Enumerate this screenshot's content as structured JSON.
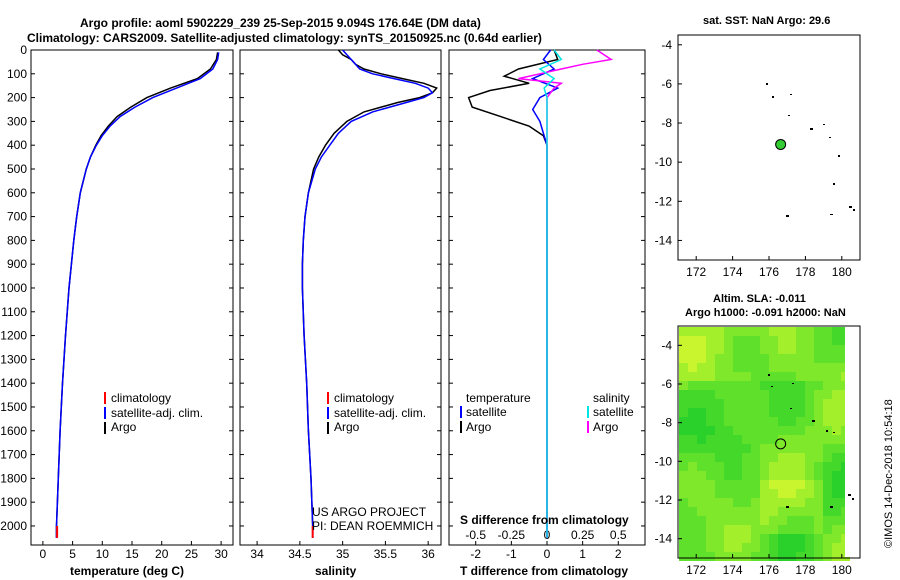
{
  "header": {
    "line1": "Argo profile: aoml 5902229_239 25-Sep-2015 9.094S 176.64E (DM data)",
    "line2": "Climatology: CARS2009. Satellite-adjusted climatology: synTS_20150925.nc (0.64d earlier)"
  },
  "colors": {
    "climatology": "#ff0000",
    "satellite": "#0000ff",
    "argo": "#000000",
    "argo_s": "#ff00ff",
    "satellite_s": "#00e5e5",
    "marker": "#33cc33"
  },
  "chart_data": [
    {
      "type": "line",
      "id": "temperature",
      "xlabel": "temperature (deg C)",
      "xlim": [
        -2,
        32
      ],
      "ylim": [
        0,
        2080
      ],
      "xticks": [
        "0",
        "5",
        "10",
        "15",
        "20",
        "25",
        "30"
      ],
      "yticks": [
        "0",
        "100",
        "200",
        "300",
        "400",
        "500",
        "600",
        "700",
        "800",
        "900",
        "1000",
        "1100",
        "1200",
        "1300",
        "1400",
        "1500",
        "1600",
        "1700",
        "1800",
        "1900",
        "2000"
      ],
      "legend": [
        "climatology",
        "satellite-adj. clim.",
        "Argo"
      ],
      "series": [
        {
          "name": "climatology",
          "depth": [
            2000,
            2050
          ],
          "values": [
            2.4,
            2.4
          ]
        },
        {
          "name": "satellite-adj. clim.",
          "depth": [
            10,
            40,
            80,
            120,
            160,
            200,
            240,
            280,
            320,
            360,
            400,
            450,
            500,
            600,
            700,
            800,
            900,
            1000,
            1200,
            1400,
            1600,
            1800,
            2000,
            2050
          ],
          "values": [
            29.6,
            29.4,
            28.6,
            26.5,
            22.5,
            18.5,
            15.5,
            13.0,
            11.3,
            10.0,
            9.0,
            8.0,
            7.3,
            6.3,
            5.7,
            5.2,
            4.8,
            4.4,
            3.8,
            3.3,
            2.9,
            2.6,
            2.3,
            2.3
          ]
        },
        {
          "name": "Argo",
          "depth": [
            10,
            40,
            80,
            120,
            160,
            200,
            240,
            280,
            320,
            360,
            400,
            450,
            500,
            600,
            700,
            800,
            900,
            1000,
            1200,
            1400,
            1600,
            1800,
            2000,
            2050
          ],
          "values": [
            29.4,
            29.2,
            28.2,
            26.0,
            21.5,
            17.5,
            14.8,
            12.5,
            11.0,
            9.8,
            8.9,
            8.0,
            7.3,
            6.3,
            5.7,
            5.2,
            4.8,
            4.4,
            3.8,
            3.3,
            2.9,
            2.6,
            2.3,
            2.3
          ]
        }
      ]
    },
    {
      "type": "line",
      "id": "salinity",
      "xlabel": "salinity",
      "xlim": [
        33.8,
        36.15
      ],
      "ylim": [
        0,
        2080
      ],
      "xticks": [
        "34",
        "34.5",
        "35",
        "35.5",
        "36"
      ],
      "legend": [
        "climatology",
        "satellite-adj. clim.",
        "Argo"
      ],
      "credit": [
        "US ARGO PROJECT",
        "PI: DEAN ROEMMICH"
      ],
      "series": [
        {
          "name": "climatology",
          "depth": [
            2000,
            2050
          ],
          "values": [
            34.65,
            34.65
          ]
        },
        {
          "name": "satellite-adj. clim.",
          "depth": [
            0,
            20,
            40,
            60,
            80,
            100,
            120,
            140,
            160,
            180,
            200,
            220,
            240,
            260,
            300,
            350,
            400,
            450,
            500,
            600,
            700,
            800,
            900,
            1000,
            1200,
            1400,
            1600,
            1800,
            2000,
            2050
          ],
          "values": [
            35.0,
            35.05,
            35.1,
            35.15,
            35.2,
            35.35,
            35.6,
            35.85,
            36.0,
            36.05,
            35.95,
            35.75,
            35.55,
            35.35,
            35.1,
            34.95,
            34.85,
            34.75,
            34.68,
            34.6,
            34.56,
            34.54,
            34.53,
            34.53,
            34.55,
            34.58,
            34.6,
            34.63,
            34.65,
            34.65
          ]
        },
        {
          "name": "Argo",
          "depth": [
            0,
            20,
            40,
            60,
            80,
            100,
            120,
            140,
            160,
            180,
            200,
            220,
            240,
            260,
            300,
            350,
            400,
            450,
            500,
            600,
            700,
            800,
            900,
            1000,
            1200,
            1400,
            1600,
            1800,
            2000,
            2050
          ],
          "values": [
            34.95,
            35.0,
            35.1,
            35.15,
            35.25,
            35.45,
            35.7,
            35.95,
            36.1,
            36.05,
            35.9,
            35.65,
            35.45,
            35.25,
            35.05,
            34.9,
            34.8,
            34.72,
            34.66,
            34.6,
            34.56,
            34.54,
            34.53,
            34.53,
            34.55,
            34.58,
            34.6,
            34.63,
            34.65,
            34.65
          ]
        }
      ]
    },
    {
      "type": "line",
      "id": "difference",
      "xlabel": "T difference from climatology",
      "xlabel2": "S difference from climatology",
      "xlim": [
        -2.75,
        2.75
      ],
      "ylim": [
        0,
        2080
      ],
      "xticks": [
        "-2",
        "-1",
        "0",
        "1",
        "2"
      ],
      "xticks_s": [
        "-0.5",
        "-0.25",
        "0",
        "0.25",
        "0.5"
      ],
      "legend": {
        "temperature_title": "temperature",
        "salinity_title": "salinity",
        "temperature": [
          "satellite",
          "Argo"
        ],
        "salinity": [
          "satellite",
          "Argo"
        ]
      },
      "series": [
        {
          "name": "T satellite",
          "depth": [
            0,
            40,
            80,
            120,
            160,
            200,
            250,
            300,
            350,
            400,
            500,
            600,
            800,
            1000,
            1400,
            2050
          ],
          "values": [
            0.1,
            -0.1,
            0.2,
            -0.4,
            0.3,
            -0.2,
            -0.4,
            -0.2,
            -0.1,
            0,
            0,
            0,
            0,
            0,
            0,
            0
          ]
        },
        {
          "name": "T Argo",
          "depth": [
            0,
            40,
            80,
            110,
            140,
            170,
            200,
            240,
            280,
            320,
            360,
            400,
            450,
            500,
            600,
            800,
            1000,
            1400,
            2050
          ],
          "values": [
            0.2,
            0.3,
            -0.8,
            -1.2,
            -0.5,
            -1.6,
            -2.2,
            -2.1,
            -1.3,
            -0.5,
            -0.1,
            0,
            0,
            0,
            0,
            0,
            0,
            0,
            0
          ]
        },
        {
          "name": "S satellite",
          "depth": [
            0,
            40,
            80,
            120,
            160,
            200,
            300,
            400,
            500,
            700,
            1000,
            1400,
            2050
          ],
          "values": [
            0.05,
            0.1,
            -0.05,
            0.05,
            -0.02,
            0,
            0,
            0,
            0,
            0,
            0,
            0,
            0
          ]
        },
        {
          "name": "S Argo",
          "depth": [
            0,
            40,
            60,
            80,
            100,
            120,
            140,
            160,
            200,
            250,
            300,
            400,
            500,
            700,
            1000,
            1400,
            2050
          ],
          "values": [
            0.35,
            0.45,
            0.25,
            0.1,
            -0.05,
            -0.2,
            0.1,
            0.05,
            0,
            0,
            0,
            0,
            0,
            0,
            0,
            0,
            0
          ]
        }
      ]
    },
    {
      "type": "scatter",
      "id": "sst_map",
      "title": "sat. SST: NaN Argo: 29.6",
      "xlim": [
        171,
        181
      ],
      "ylim": [
        -15,
        -3.5
      ],
      "xticks": [
        "172",
        "174",
        "176",
        "178",
        "180"
      ],
      "yticks": [
        "-4",
        "-6",
        "-8",
        "-10",
        "-12",
        "-14"
      ],
      "points": [
        {
          "lon": 176.64,
          "lat": -9.094
        }
      ]
    },
    {
      "type": "heatmap",
      "id": "sla_map",
      "title1": "Altim. SLA: -0.011",
      "title2": "Argo h1000: -0.091 h2000: NaN",
      "xlim": [
        171,
        181
      ],
      "ylim": [
        -15,
        -3
      ],
      "xticks": [
        "172",
        "174",
        "176",
        "178",
        "180"
      ],
      "yticks": [
        "-4",
        "-6",
        "-8",
        "-10",
        "-12",
        "-14"
      ],
      "points": [
        {
          "lon": 176.64,
          "lat": -9.094
        }
      ]
    }
  ],
  "timestamp": "©IMOS 14-Dec-2018 10:54:18"
}
